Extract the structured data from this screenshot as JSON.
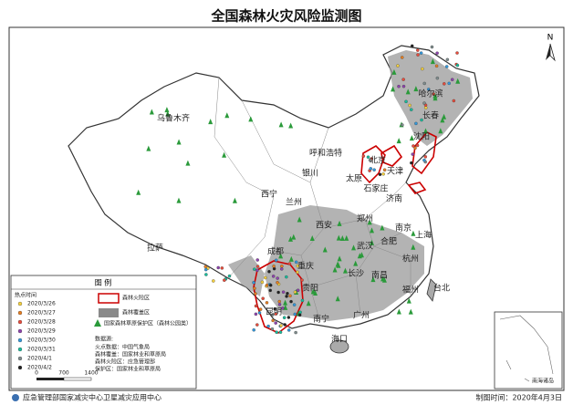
{
  "title": "全国森林火灾风险监测图",
  "north": "N",
  "labels": [
    "乌鲁木齐",
    "哈尔滨",
    "长春",
    "沈阳",
    "呼和浩特",
    "北京",
    "天津",
    "太原",
    "石家庄",
    "银川",
    "西宁",
    "兰州",
    "西安",
    "郑州",
    "济南",
    "拉萨",
    "成都",
    "重庆",
    "武汉",
    "合肥",
    "南京",
    "上海",
    "杭州",
    "长沙",
    "南昌",
    "福州",
    "贵阳",
    "昆明",
    "南宁",
    "广州",
    "台北",
    "海口"
  ],
  "legend": {
    "title": "图 例",
    "hotspot_header": "热点时间",
    "dates": [
      "2020/3/26",
      "2020/3/27",
      "2020/3/28",
      "2020/3/29",
      "2020/3/30",
      "2020/3/31",
      "2020/4/1",
      "2020/4/2"
    ],
    "items": [
      "森林火险区",
      "森林覆盖区",
      "国家森林草原保护区（森林公园类）"
    ],
    "source_header": "数据源:",
    "source_lines": [
      "火点数据：中国气象局",
      "森林覆盖：国家林业和草原局",
      "森林火险区：应急管理部",
      "保护区：国家林业和草原局"
    ],
    "scale": [
      "0",
      "700",
      "1400"
    ]
  },
  "inset": "南海诸岛",
  "footer": {
    "left": "应急管理部国家减灾中心卫星减灾应用中心",
    "right": "制图时间：2020年4月3日"
  }
}
